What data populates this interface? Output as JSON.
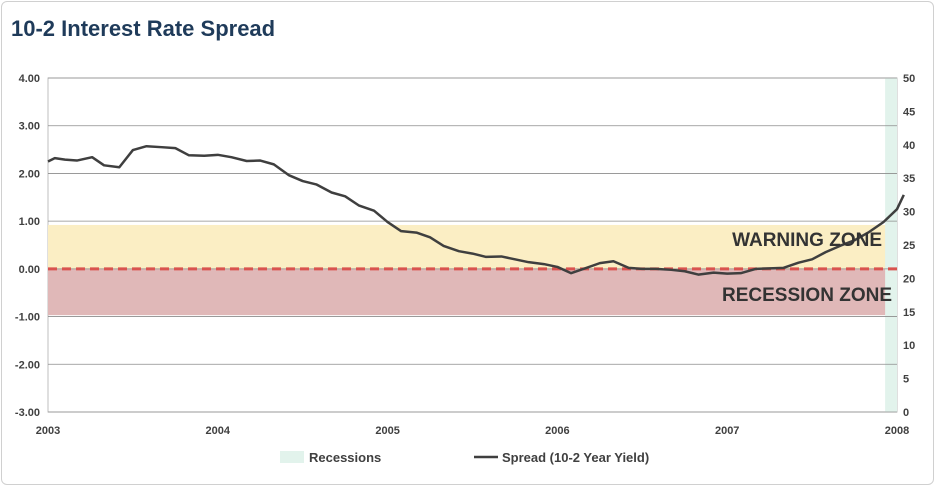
{
  "chart_data": {
    "type": "line",
    "title": "10-2 Interest Rate Spread",
    "x_ticks": [
      "2003",
      "2004",
      "2005",
      "2006",
      "2007",
      "2008"
    ],
    "y_left_ticks": [
      "4.00",
      "3.00",
      "2.00",
      "1.00",
      "0.00",
      "-1.00",
      "-2.00",
      "-3.00"
    ],
    "y_right_ticks": [
      "50",
      "45",
      "40",
      "35",
      "30",
      "25",
      "20",
      "15",
      "10",
      "5",
      "0"
    ],
    "ylim_left": [
      -3,
      4
    ],
    "ylim_right": [
      0,
      50
    ],
    "xlim": [
      2003,
      2008
    ],
    "grid": "horizontal",
    "legend_position": "bottom",
    "zones": [
      {
        "name": "WARNING ZONE",
        "from": 0.0,
        "to": 0.92,
        "color": "#fbeec4"
      },
      {
        "name": "RECESSION ZONE",
        "from": -0.97,
        "to": 0.0,
        "color": "#e0b8b8"
      }
    ],
    "zero_line_color": "#d9534f",
    "recessions": {
      "name": "Recessions",
      "color": "#e2f3ec",
      "periods": [
        [
          2007.93,
          2008.0
        ]
      ]
    },
    "series": [
      {
        "name": "Spread (10-2 Year Yield)",
        "color": "#3f3f3f",
        "x": [
          2003.0,
          2003.04,
          2003.1,
          2003.17,
          2003.26,
          2003.33,
          2003.42,
          2003.5,
          2003.58,
          2003.67,
          2003.75,
          2003.83,
          2003.92,
          2004.0,
          2004.08,
          2004.17,
          2004.25,
          2004.33,
          2004.42,
          2004.5,
          2004.58,
          2004.67,
          2004.75,
          2004.83,
          2004.92,
          2005.0,
          2005.08,
          2005.17,
          2005.25,
          2005.33,
          2005.42,
          2005.5,
          2005.58,
          2005.67,
          2005.75,
          2005.83,
          2005.92,
          2006.0,
          2006.08,
          2006.17,
          2006.25,
          2006.33,
          2006.42,
          2006.5,
          2006.58,
          2006.67,
          2006.75,
          2006.83,
          2006.92,
          2007.0,
          2007.08,
          2007.17,
          2007.25,
          2007.33,
          2007.42,
          2007.5,
          2007.58,
          2007.67,
          2007.75,
          2007.83,
          2007.92,
          2008.0,
          2008.04
        ],
        "y": [
          2.25,
          2.32,
          2.29,
          2.27,
          2.34,
          2.17,
          2.13,
          2.49,
          2.57,
          2.55,
          2.53,
          2.38,
          2.37,
          2.39,
          2.34,
          2.26,
          2.27,
          2.19,
          1.96,
          1.84,
          1.77,
          1.6,
          1.52,
          1.33,
          1.22,
          0.98,
          0.79,
          0.76,
          0.66,
          0.48,
          0.37,
          0.32,
          0.25,
          0.26,
          0.2,
          0.14,
          0.1,
          0.04,
          -0.09,
          0.02,
          0.12,
          0.16,
          0.02,
          0.0,
          0.0,
          -0.02,
          -0.05,
          -0.12,
          -0.08,
          -0.1,
          -0.09,
          0.0,
          0.01,
          0.02,
          0.13,
          0.2,
          0.35,
          0.49,
          0.6,
          0.76,
          0.98,
          1.25,
          1.55
        ]
      }
    ]
  }
}
